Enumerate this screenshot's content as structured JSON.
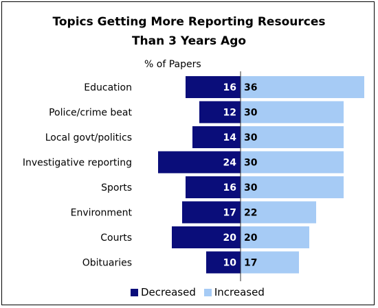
{
  "chart_data": {
    "type": "bar",
    "title": "Topics Getting More Reporting Resources",
    "title_line2": "Than 3 Years Ago",
    "subtitle": "% of Papers",
    "categories": [
      "Education",
      "Police/crime beat",
      "Local govt/politics",
      "Investigative reporting",
      "Sports",
      "Environment",
      "Courts",
      "Obituaries"
    ],
    "series": [
      {
        "name": "Decreased",
        "color": "#0a0d7a",
        "values": [
          16,
          12,
          14,
          24,
          16,
          17,
          20,
          10
        ]
      },
      {
        "name": "Increased",
        "color": "#a6cbf5",
        "values": [
          36,
          30,
          30,
          30,
          30,
          22,
          20,
          17
        ]
      }
    ],
    "legend_position": "bottom",
    "grid": false
  }
}
